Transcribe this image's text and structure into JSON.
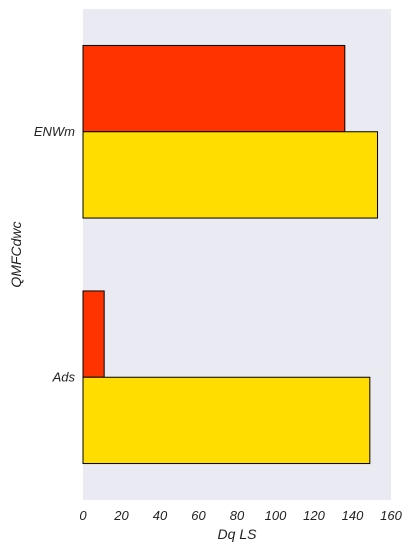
{
  "chart_data": {
    "type": "bar",
    "orientation": "horizontal",
    "categories": [
      "ENWm",
      "Ads"
    ],
    "series": [
      {
        "values": [
          136,
          11
        ],
        "color": "#ff3300"
      },
      {
        "values": [
          153,
          149
        ],
        "color": "#ffdd00"
      }
    ],
    "xlabel": "Dq LS",
    "ylabel": "QMFCdwc",
    "xlim": [
      0,
      160
    ],
    "xticks": [
      "0",
      "20",
      "40",
      "60",
      "80",
      "100",
      "120",
      "140",
      "160"
    ],
    "grid": false,
    "background_color": "#eaeaf2",
    "edge_color": "#000000"
  }
}
